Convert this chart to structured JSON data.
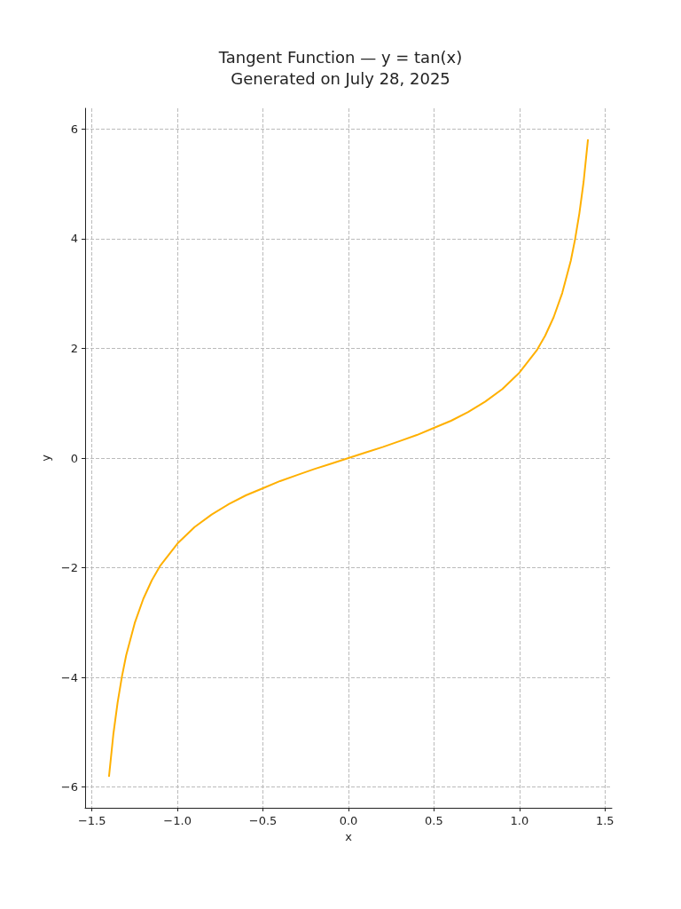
{
  "chart_data": {
    "type": "line",
    "title": "Tangent Function — y = tan(x)",
    "subtitle": "Generated on July 28, 2025",
    "xlabel": "x",
    "ylabel": "y",
    "x": [
      -1.4,
      -1.375,
      -1.35,
      -1.325,
      -1.3,
      -1.25,
      -1.2,
      -1.15,
      -1.1,
      -1.0,
      -0.9,
      -0.8,
      -0.7,
      -0.6,
      -0.5,
      -0.4,
      -0.3,
      -0.2,
      -0.1,
      0,
      0.1,
      0.2,
      0.3,
      0.4,
      0.5,
      0.6,
      0.7,
      0.8,
      0.9,
      1.0,
      1.1,
      1.15,
      1.2,
      1.25,
      1.3,
      1.325,
      1.35,
      1.375,
      1.4
    ],
    "series": [
      {
        "color": "#ffb000",
        "values": [
          -5.8,
          -5.04,
          -4.46,
          -3.99,
          -3.6,
          -3.01,
          -2.57,
          -2.23,
          -1.96,
          -1.56,
          -1.26,
          -1.03,
          -0.84,
          -0.68,
          -0.55,
          -0.42,
          -0.31,
          -0.2,
          -0.1,
          0,
          0.1,
          0.2,
          0.31,
          0.42,
          0.55,
          0.68,
          0.84,
          1.03,
          1.26,
          1.56,
          1.96,
          2.23,
          2.57,
          3.01,
          3.6,
          3.99,
          4.46,
          5.04,
          5.8
        ]
      }
    ],
    "xlim": [
      -1.54,
      1.54
    ],
    "ylim": [
      -6.38,
      6.38
    ],
    "xticks": [
      {
        "value": -1.5,
        "label": "−1.5"
      },
      {
        "value": -1.0,
        "label": "−1.0"
      },
      {
        "value": -0.5,
        "label": "−0.5"
      },
      {
        "value": 0,
        "label": "0.0"
      },
      {
        "value": 0.5,
        "label": "0.5"
      },
      {
        "value": 1.0,
        "label": "1.0"
      },
      {
        "value": 1.5,
        "label": "1.5"
      }
    ],
    "yticks": [
      {
        "value": -6,
        "label": "−6"
      },
      {
        "value": -4,
        "label": "−4"
      },
      {
        "value": -2,
        "label": "−2"
      },
      0,
      2,
      4,
      6
    ],
    "grid": true,
    "line_style": "solid",
    "marker": "none"
  }
}
